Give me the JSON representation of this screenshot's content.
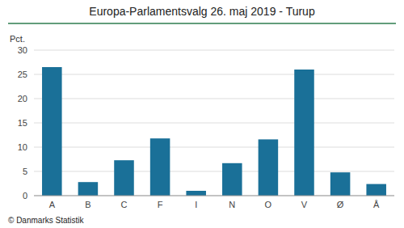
{
  "chart_data": {
    "type": "bar",
    "title": "Europa-Parlamentsvalg 26. maj 2019 - Turup",
    "categories": [
      "A",
      "B",
      "C",
      "F",
      "I",
      "N",
      "O",
      "V",
      "Ø",
      "Å"
    ],
    "values": [
      26.5,
      2.8,
      7.3,
      11.8,
      1.0,
      6.7,
      11.6,
      26.0,
      4.8,
      2.4
    ],
    "color": "#1a7098",
    "ylabel": "Pct.",
    "ylim": [
      0,
      30
    ],
    "yticks": [
      0,
      5,
      10,
      15,
      20,
      25,
      30
    ],
    "grid": true,
    "footer": "© Danmarks Statistik"
  }
}
